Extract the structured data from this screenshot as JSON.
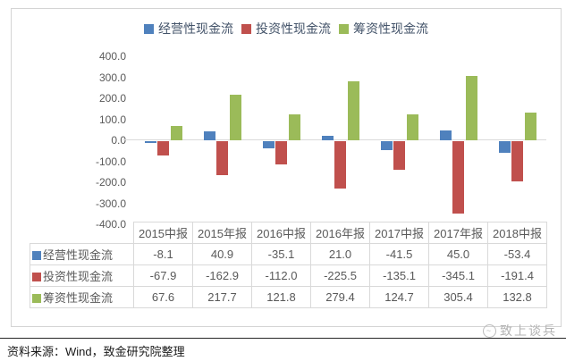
{
  "chart_data": {
    "type": "bar",
    "title": "",
    "categories": [
      "2015中报",
      "2015年报",
      "2016中报",
      "2016年报",
      "2017中报",
      "2017年报",
      "2018中报"
    ],
    "series": [
      {
        "name": "经营性现金流",
        "color": "#4F81BD",
        "values": [
          -8.1,
          40.9,
          -35.1,
          21.0,
          -41.5,
          45.0,
          -53.4
        ]
      },
      {
        "name": "投资性现金流",
        "color": "#C0504D",
        "values": [
          -67.9,
          -162.9,
          -112.0,
          -225.5,
          -135.1,
          -345.1,
          -191.4
        ]
      },
      {
        "name": "筹资性现金流",
        "color": "#9BBB59",
        "values": [
          67.6,
          217.7,
          121.8,
          279.4,
          124.7,
          305.4,
          132.8
        ]
      }
    ],
    "xlabel": "",
    "ylabel": "",
    "ylim": [
      -400,
      400
    ],
    "ytick_step": 100,
    "yticks": [
      "400.0",
      "300.0",
      "200.0",
      "100.0",
      "0.0",
      "-100.0",
      "-200.0",
      "-300.0",
      "-400.0"
    ],
    "grid": false,
    "legend_position": "top-center",
    "data_table_shown": true
  },
  "colors": {
    "series_blue": "#4F81BD",
    "series_red": "#C0504D",
    "series_green": "#9BBB59",
    "axis_text": "#595959",
    "legend_text": "#44546A",
    "grid_line": "#D9D9D9",
    "frame_border": "#D4D4D4"
  },
  "footer": {
    "source_text": "资料来源：Wind，致金研究院整理"
  },
  "watermark": {
    "text": "致上谈兵",
    "icon": "swirl-logo-icon"
  }
}
